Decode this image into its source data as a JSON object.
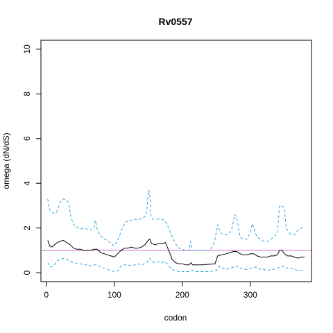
{
  "chart_data": {
    "type": "line",
    "title": "Rv0557",
    "xlabel": "codon",
    "ylabel": "omega (dN/dS)",
    "xlim": [
      -8,
      390
    ],
    "ylim": [
      -0.4,
      10.4
    ],
    "xticks": [
      0,
      100,
      200,
      300
    ],
    "yticks": [
      0,
      2,
      4,
      6,
      8,
      10
    ],
    "grid": false,
    "legend": "none",
    "reference_line": {
      "y": 1,
      "color": "#cc66cc"
    },
    "colors": {
      "mean": "#000000",
      "bounds": "#29a3df",
      "reference": "#cc66cc"
    },
    "series": [
      {
        "role": "mean",
        "style": "solid",
        "x": [
          2,
          5,
          8,
          12,
          16,
          20,
          25,
          30,
          35,
          40,
          45,
          50,
          55,
          60,
          65,
          70,
          75,
          80,
          85,
          90,
          95,
          100,
          105,
          110,
          115,
          120,
          125,
          130,
          135,
          140,
          145,
          150,
          152,
          155,
          160,
          165,
          170,
          175,
          180,
          185,
          190,
          195,
          200,
          205,
          210,
          213,
          215,
          220,
          230,
          240,
          248,
          252,
          258,
          265,
          270,
          275,
          280,
          285,
          290,
          295,
          300,
          305,
          310,
          315,
          320,
          325,
          330,
          335,
          340,
          343,
          347,
          350,
          355,
          360,
          365,
          370,
          375,
          380
        ],
        "y": [
          1.45,
          1.2,
          1.15,
          1.25,
          1.35,
          1.4,
          1.45,
          1.35,
          1.25,
          1.1,
          1.05,
          1.05,
          1.0,
          1.0,
          1.0,
          1.05,
          1.05,
          0.9,
          0.85,
          0.8,
          0.75,
          0.7,
          0.85,
          1.0,
          1.1,
          1.1,
          1.15,
          1.1,
          1.1,
          1.15,
          1.25,
          1.45,
          1.5,
          1.3,
          1.25,
          1.3,
          1.3,
          1.35,
          1.0,
          0.6,
          0.45,
          0.4,
          0.4,
          0.35,
          0.35,
          0.45,
          0.35,
          0.35,
          0.35,
          0.38,
          0.4,
          0.75,
          0.8,
          0.85,
          0.9,
          0.95,
          0.95,
          0.85,
          0.8,
          0.8,
          0.85,
          0.85,
          0.75,
          0.7,
          0.7,
          0.7,
          0.75,
          0.75,
          0.8,
          1.0,
          1.0,
          0.85,
          0.75,
          0.75,
          0.7,
          0.65,
          0.7,
          0.7
        ]
      },
      {
        "role": "upper-bound",
        "style": "dashed",
        "x": [
          2,
          4,
          6,
          9,
          12,
          15,
          18,
          20,
          25,
          30,
          33,
          36,
          40,
          45,
          50,
          55,
          60,
          65,
          70,
          72,
          75,
          80,
          85,
          90,
          95,
          100,
          105,
          110,
          115,
          120,
          125,
          130,
          135,
          140,
          145,
          148,
          150,
          152,
          154,
          156,
          160,
          165,
          170,
          175,
          180,
          185,
          190,
          195,
          200,
          205,
          210,
          212,
          215,
          220,
          230,
          240,
          245,
          248,
          252,
          256,
          260,
          265,
          270,
          273,
          277,
          280,
          285,
          290,
          295,
          300,
          303,
          307,
          310,
          315,
          320,
          325,
          330,
          335,
          340,
          343,
          346,
          350,
          353,
          357,
          360,
          365,
          370,
          375,
          380
        ],
        "y": [
          3.3,
          2.9,
          2.75,
          2.7,
          2.65,
          2.7,
          2.95,
          3.15,
          3.3,
          3.25,
          3.1,
          2.5,
          2.15,
          2.05,
          1.95,
          2.0,
          1.95,
          1.9,
          2.0,
          2.35,
          1.9,
          1.65,
          1.5,
          1.45,
          1.3,
          1.2,
          1.45,
          1.85,
          2.2,
          2.35,
          2.35,
          2.4,
          2.35,
          2.45,
          2.5,
          2.8,
          3.7,
          3.6,
          2.5,
          2.4,
          2.4,
          2.4,
          2.4,
          2.3,
          2.0,
          1.6,
          1.3,
          1.1,
          1.05,
          1.0,
          1.0,
          1.4,
          1.0,
          1.0,
          1.0,
          1.0,
          1.2,
          1.5,
          2.15,
          1.8,
          1.7,
          1.7,
          1.8,
          2.0,
          2.6,
          2.5,
          1.6,
          1.5,
          1.5,
          1.8,
          2.2,
          1.8,
          1.6,
          1.5,
          1.4,
          1.4,
          1.5,
          1.6,
          1.8,
          3.0,
          3.0,
          2.9,
          2.0,
          1.8,
          1.7,
          1.7,
          1.9,
          2.0,
          2.05
        ]
      },
      {
        "role": "lower-bound",
        "style": "dashed",
        "x": [
          2,
          6,
          10,
          15,
          20,
          25,
          30,
          35,
          40,
          45,
          50,
          55,
          60,
          65,
          70,
          75,
          80,
          85,
          90,
          95,
          100,
          105,
          110,
          115,
          120,
          125,
          130,
          135,
          140,
          145,
          150,
          152,
          155,
          160,
          165,
          170,
          175,
          180,
          185,
          190,
          195,
          200,
          210,
          215,
          220,
          230,
          240,
          250,
          255,
          260,
          265,
          270,
          275,
          280,
          285,
          290,
          295,
          300,
          305,
          310,
          315,
          320,
          325,
          330,
          335,
          340,
          345,
          350,
          355,
          360,
          365,
          370,
          375,
          380
        ],
        "y": [
          0.45,
          0.25,
          0.3,
          0.5,
          0.6,
          0.65,
          0.6,
          0.5,
          0.45,
          0.4,
          0.4,
          0.35,
          0.35,
          0.3,
          0.35,
          0.35,
          0.25,
          0.2,
          0.15,
          0.1,
          0.05,
          0.1,
          0.3,
          0.35,
          0.35,
          0.3,
          0.35,
          0.4,
          0.35,
          0.4,
          0.55,
          0.65,
          0.5,
          0.45,
          0.5,
          0.45,
          0.5,
          0.3,
          0.15,
          0.1,
          0.05,
          0.05,
          0.05,
          0.1,
          0.05,
          0.05,
          0.05,
          0.1,
          0.3,
          0.2,
          0.15,
          0.2,
          0.25,
          0.3,
          0.2,
          0.15,
          0.15,
          0.2,
          0.25,
          0.25,
          0.15,
          0.15,
          0.1,
          0.15,
          0.15,
          0.2,
          0.3,
          0.25,
          0.2,
          0.2,
          0.15,
          0.1,
          0.1,
          0.1
        ]
      }
    ]
  }
}
